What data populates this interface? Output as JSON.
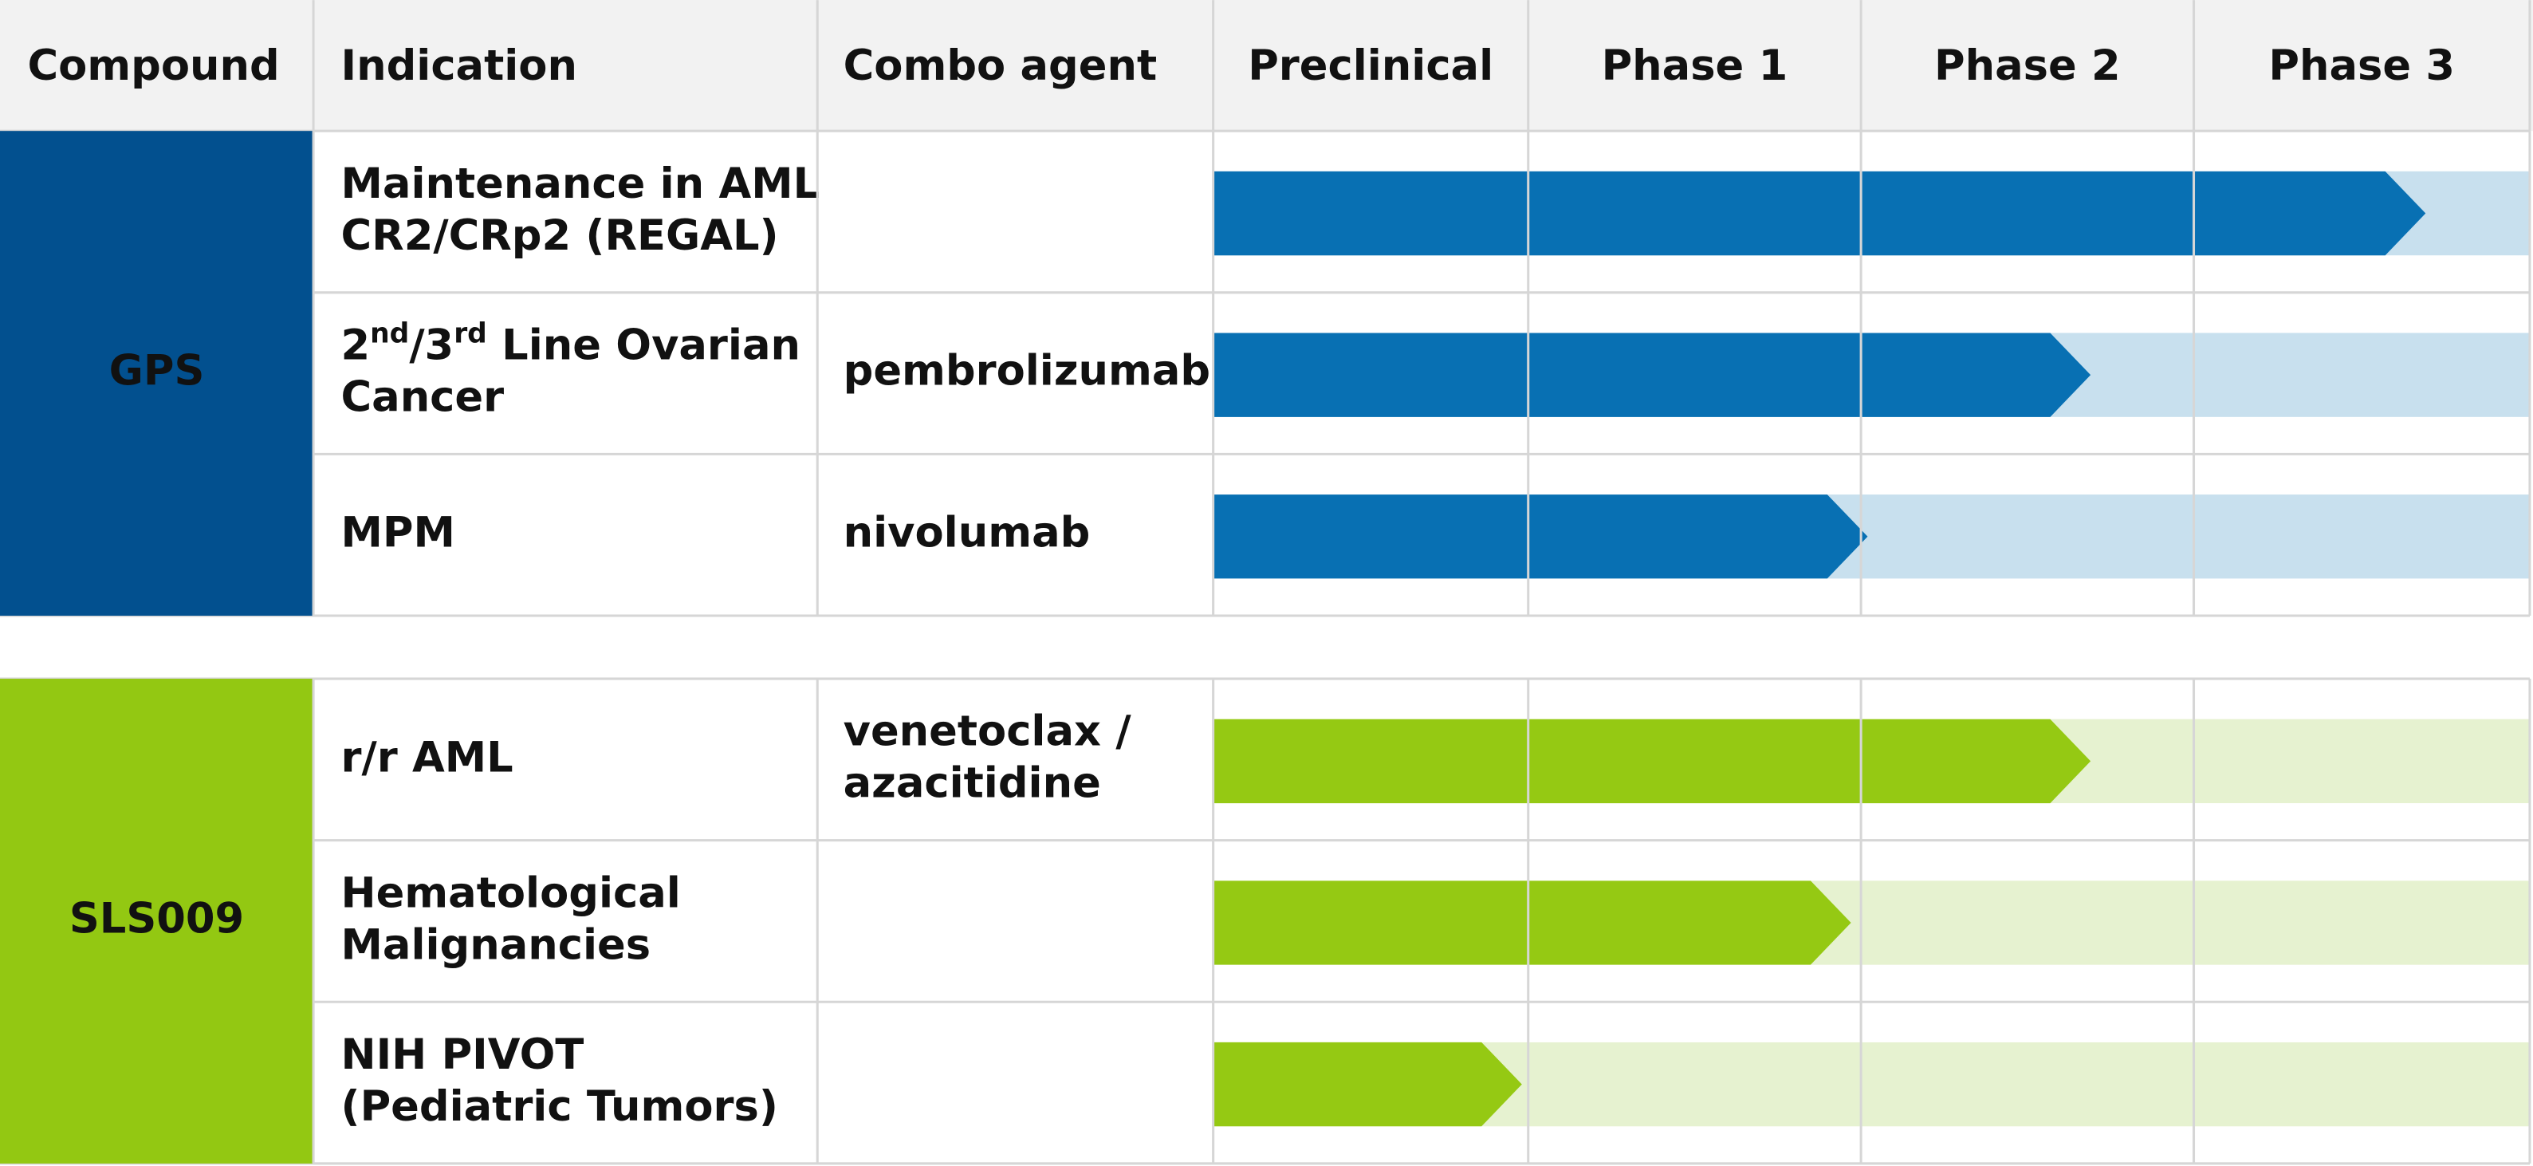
{
  "header": {
    "columns": [
      "Compound",
      "Indication",
      "Combo agent",
      "Preclinical",
      "Phase 1",
      "Phase 2",
      "Phase 3"
    ]
  },
  "groups": [
    {
      "compound": "GPS",
      "color": "#02508f",
      "bar_color": "#0870b3",
      "track_color": "#c8e0ee",
      "rows": [
        {
          "indication": [
            [
              {
                "text": "Maintenance in AML"
              }
            ],
            [
              {
                "text": "CR2/CRp2 (REGAL)"
              }
            ]
          ],
          "combo": [],
          "progress": 3.69
        },
        {
          "indication": [
            [
              {
                "text": "2"
              },
              {
                "sup": "nd"
              },
              {
                "text": "/3"
              },
              {
                "sup": "rd"
              },
              {
                "text": " Line Ovarian"
              }
            ],
            [
              {
                "text": "Cancer"
              }
            ]
          ],
          "combo": [
            "pembrolizumab"
          ],
          "progress": 2.69
        },
        {
          "indication": [
            [
              {
                "text": "MPM"
              }
            ]
          ],
          "combo": [
            "nivolumab"
          ],
          "progress": 2.02
        }
      ]
    },
    {
      "compound": "SLS009",
      "color": "#93c812",
      "bar_color": "#95c913",
      "track_color": "#e6f2d0",
      "rows": [
        {
          "indication": [
            [
              {
                "text": "r/r AML"
              }
            ]
          ],
          "combo": [
            "venetoclax /",
            "azacitidine"
          ],
          "progress": 2.69
        },
        {
          "indication": [
            [
              {
                "text": "Hematological"
              }
            ],
            [
              {
                "text": "Malignancies"
              }
            ]
          ],
          "combo": [],
          "progress": 1.97
        },
        {
          "indication": [
            [
              {
                "text": "NIH PIVOT"
              }
            ],
            [
              {
                "text": "(Pediatric Tumors)"
              }
            ]
          ],
          "combo": [],
          "progress": 0.98
        }
      ]
    }
  ]
}
